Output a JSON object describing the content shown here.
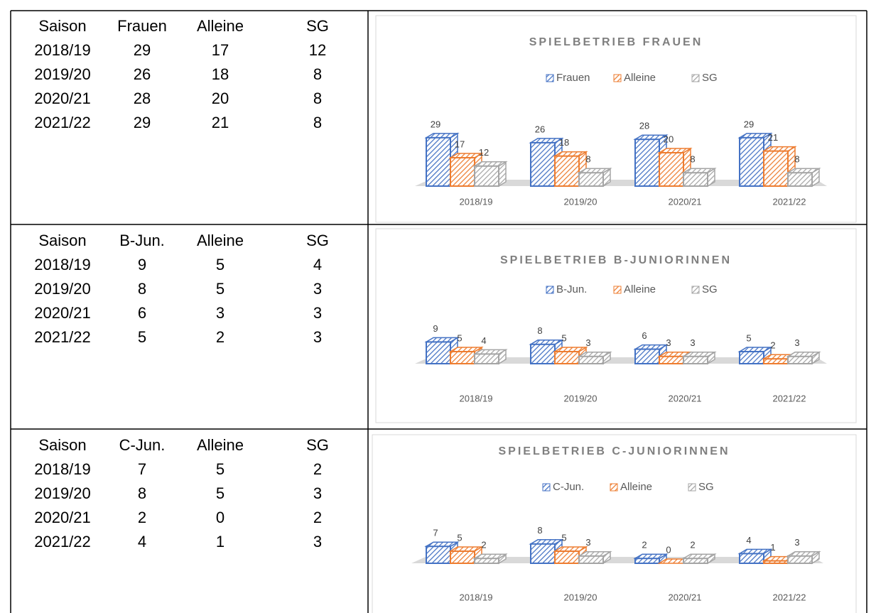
{
  "tables": [
    {
      "header": [
        "Saison",
        "Frauen",
        "Alleine",
        "SG"
      ],
      "rows": [
        [
          "2018/19",
          29,
          17,
          12
        ],
        [
          "2019/20",
          26,
          18,
          8
        ],
        [
          "2020/21",
          28,
          20,
          8
        ],
        [
          "2021/22",
          29,
          21,
          8
        ]
      ]
    },
    {
      "header": [
        "Saison",
        "B-Jun.",
        "Alleine",
        "SG"
      ],
      "rows": [
        [
          "2018/19",
          9,
          5,
          4
        ],
        [
          "2019/20",
          8,
          5,
          3
        ],
        [
          "2020/21",
          6,
          3,
          3
        ],
        [
          "2021/22",
          5,
          2,
          3
        ]
      ]
    },
    {
      "header": [
        "Saison",
        "C-Jun.",
        "Alleine",
        "SG"
      ],
      "rows": [
        [
          "2018/19",
          7,
          5,
          2
        ],
        [
          "2019/20",
          8,
          5,
          3
        ],
        [
          "2020/21",
          2,
          0,
          2
        ],
        [
          "2021/22",
          4,
          1,
          3
        ]
      ]
    }
  ],
  "chart_data": [
    {
      "type": "bar",
      "title": "SPIELBETRIEB FRAUEN",
      "categories": [
        "2018/19",
        "2019/20",
        "2020/21",
        "2021/22"
      ],
      "series": [
        {
          "name": "Frauen",
          "color": "#4472c4",
          "values": [
            29,
            26,
            28,
            29
          ]
        },
        {
          "name": "Alleine",
          "color": "#ed7d31",
          "values": [
            17,
            18,
            20,
            21
          ]
        },
        {
          "name": "SG",
          "color": "#a5a5a5",
          "values": [
            12,
            8,
            8,
            8
          ]
        }
      ]
    },
    {
      "type": "bar",
      "title": "SPIELBETRIEB B-JUNIORINNEN",
      "categories": [
        "2018/19",
        "2019/20",
        "2020/21",
        "2021/22"
      ],
      "series": [
        {
          "name": "B-Jun.",
          "color": "#4472c4",
          "values": [
            9,
            8,
            6,
            5
          ]
        },
        {
          "name": "Alleine",
          "color": "#ed7d31",
          "values": [
            5,
            5,
            3,
            2
          ]
        },
        {
          "name": "SG",
          "color": "#a5a5a5",
          "values": [
            4,
            3,
            3,
            3
          ]
        }
      ]
    },
    {
      "type": "bar",
      "title": "SPIELBETRIEB C-JUNIORINNEN",
      "categories": [
        "2018/19",
        "2019/20",
        "2020/21",
        "2021/22"
      ],
      "series": [
        {
          "name": "C-Jun.",
          "color": "#4472c4",
          "values": [
            7,
            8,
            2,
            4
          ]
        },
        {
          "name": "Alleine",
          "color": "#ed7d31",
          "values": [
            5,
            5,
            0,
            1
          ]
        },
        {
          "name": "SG",
          "color": "#a5a5a5",
          "values": [
            2,
            3,
            2,
            3
          ]
        }
      ]
    }
  ]
}
